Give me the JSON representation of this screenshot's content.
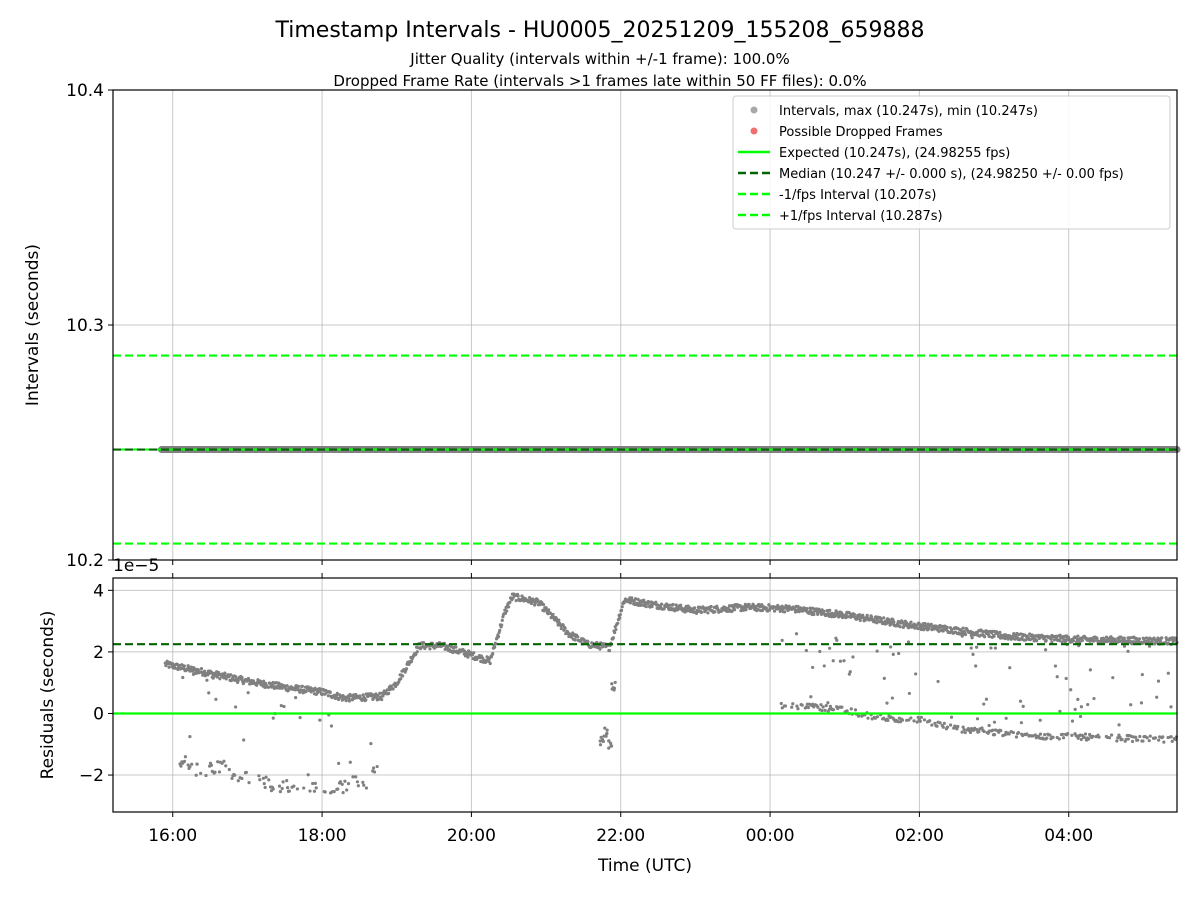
{
  "title": "Timestamp Intervals - HU0005_20251209_155208_659888",
  "subtitle1": "Jitter Quality (intervals within +/-1 frame): 100.0%",
  "subtitle2": "Dropped Frame Rate (intervals >1 frames late within 50 FF files): 0.0%",
  "colors": {
    "points": "#808080",
    "dropped": "#f08080",
    "expected": "#00ff00",
    "median": "#006400",
    "band": "#00ff00",
    "grid": "#b0b0b0"
  },
  "chart_data": [
    {
      "type": "scatter",
      "name": "intervals",
      "xlabel": "",
      "ylabel": "Intervals (seconds)",
      "xlim_hours": [
        15.2,
        29.45
      ],
      "ylim": [
        10.2,
        10.4
      ],
      "yticks": [
        "10.2",
        "10.3",
        "10.4"
      ],
      "x_start_hours": 15.85,
      "interval_value": 10.247,
      "expected": 10.247,
      "median": 10.247,
      "lower_band": 10.207,
      "upper_band": 10.287,
      "legend": [
        {
          "label": "Intervals, max (10.247s), min (10.247s)",
          "kind": "dot",
          "color": "#a8a8a8"
        },
        {
          "label": "Possible Dropped Frames",
          "kind": "dot",
          "color": "#f07070"
        },
        {
          "label": "Expected (10.247s), (24.98255 fps)",
          "kind": "solid",
          "color": "#00ff00"
        },
        {
          "label": "Median (10.247 +/- 0.000 s), (24.98250 +/- 0.00 fps)",
          "kind": "dashed",
          "color": "#006400"
        },
        {
          "label": "-1/fps Interval (10.207s)",
          "kind": "dashed",
          "color": "#00ff00"
        },
        {
          "label": "+1/fps Interval (10.287s)",
          "kind": "dashed",
          "color": "#00ff00"
        }
      ]
    },
    {
      "type": "scatter",
      "name": "residuals",
      "xlabel": "Time (UTC)",
      "ylabel": "Residuals (seconds)",
      "offset_label": "1e−5",
      "ylim": [
        -3.2,
        4.4
      ],
      "yticks": [
        -2,
        0,
        2,
        4
      ],
      "ytick_labels": [
        "−2",
        "0",
        "2",
        "4"
      ],
      "median": 2.25,
      "expected": 0,
      "xticks_hours": [
        16,
        18,
        20,
        22,
        24,
        26,
        28
      ],
      "xtick_labels": [
        "16:00",
        "18:00",
        "20:00",
        "22:00",
        "00:00",
        "02:00",
        "04:00"
      ],
      "main_trend": [
        [
          15.9,
          1.6
        ],
        [
          16.5,
          1.3
        ],
        [
          17.0,
          1.05
        ],
        [
          17.5,
          0.85
        ],
        [
          18.0,
          0.7
        ],
        [
          18.3,
          0.5
        ],
        [
          18.8,
          0.55
        ],
        [
          19.0,
          1.0
        ],
        [
          19.3,
          2.2
        ],
        [
          19.6,
          2.2
        ],
        [
          20.0,
          1.9
        ],
        [
          20.25,
          1.7
        ],
        [
          20.45,
          3.3
        ],
        [
          20.55,
          3.8
        ],
        [
          20.9,
          3.6
        ],
        [
          21.3,
          2.6
        ],
        [
          21.55,
          2.25
        ],
        [
          21.85,
          2.15
        ],
        [
          22.05,
          3.7
        ],
        [
          22.4,
          3.55
        ],
        [
          23.0,
          3.35
        ],
        [
          23.7,
          3.45
        ],
        [
          24.3,
          3.4
        ],
        [
          25.0,
          3.2
        ],
        [
          25.8,
          2.9
        ],
        [
          26.5,
          2.7
        ],
        [
          27.2,
          2.5
        ],
        [
          28.2,
          2.4
        ],
        [
          29.45,
          2.35
        ]
      ],
      "secondary_trend": [
        [
          24.15,
          0.25
        ],
        [
          24.5,
          0.25
        ],
        [
          25.0,
          0.1
        ],
        [
          25.5,
          -0.15
        ],
        [
          26.0,
          -0.2
        ],
        [
          26.5,
          -0.5
        ],
        [
          27.0,
          -0.6
        ],
        [
          27.5,
          -0.75
        ],
        [
          28.0,
          -0.75
        ],
        [
          29.45,
          -0.85
        ]
      ],
      "lower_scatter": [
        [
          16.1,
          -1.6
        ],
        [
          16.2,
          -1.5
        ],
        [
          16.3,
          -1.85
        ],
        [
          16.45,
          -1.9
        ],
        [
          16.6,
          -1.7
        ],
        [
          16.9,
          -2.1
        ],
        [
          17.2,
          -2.2
        ],
        [
          17.4,
          -2.4
        ],
        [
          17.7,
          -2.3
        ],
        [
          18.0,
          -2.55
        ],
        [
          18.3,
          -2.4
        ],
        [
          18.55,
          -2.1
        ],
        [
          18.6,
          -2.7
        ],
        [
          18.7,
          -1.85
        ]
      ],
      "outliers": [
        [
          21.75,
          -0.9
        ],
        [
          21.85,
          -1.0
        ],
        [
          21.9,
          0.9
        ],
        [
          21.8,
          -0.6
        ]
      ]
    }
  ]
}
